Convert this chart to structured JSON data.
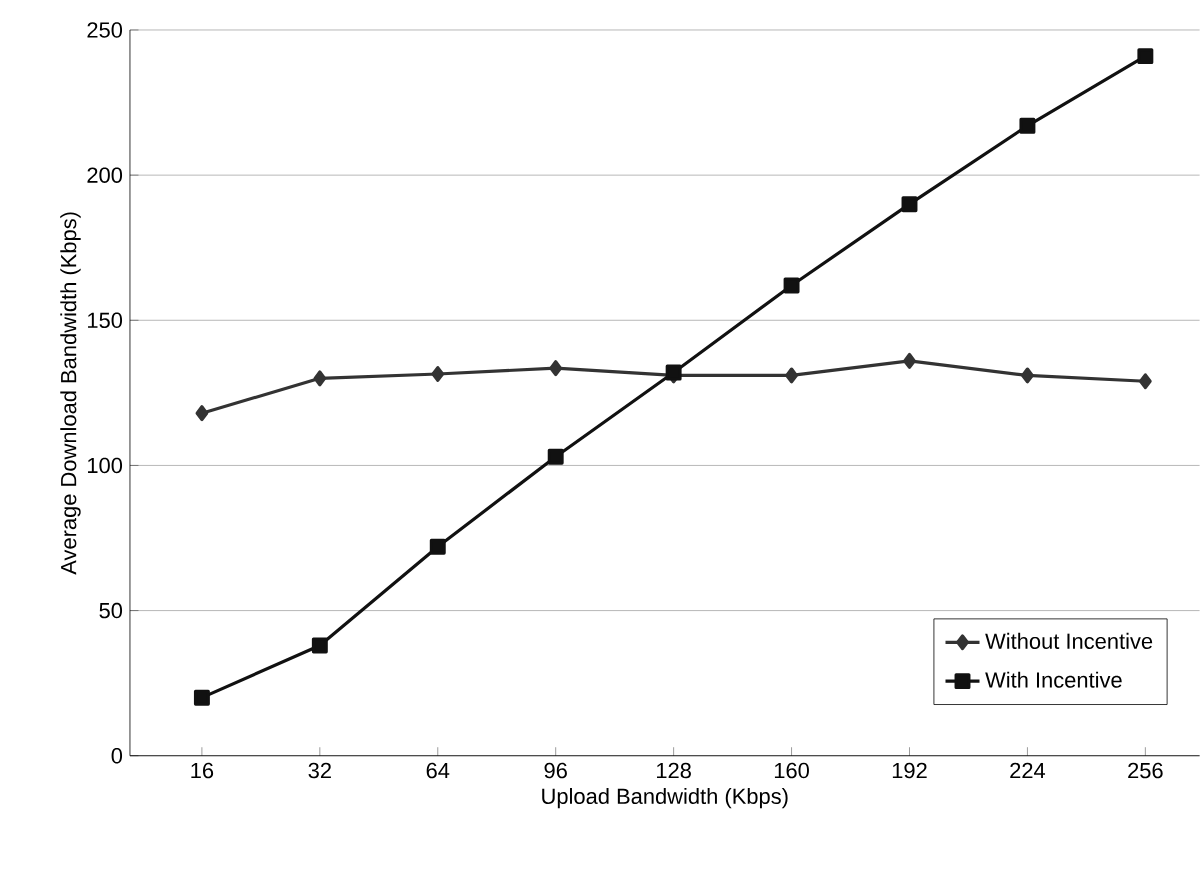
{
  "chart_data": {
    "type": "line",
    "xlabel": "Upload Bandwidth (Kbps)",
    "ylabel": "Average Download Bandwidth (Kbps)",
    "categories": [
      "16",
      "32",
      "64",
      "96",
      "128",
      "160",
      "192",
      "224",
      "256"
    ],
    "ylim": [
      0,
      250
    ],
    "yticks": [
      0,
      50,
      100,
      150,
      200,
      250
    ],
    "grid": "y",
    "legend": "bottom right",
    "line_style": "solid",
    "series": [
      {
        "name": "Without Incentive",
        "color": "#333333",
        "marker": "diamond",
        "values": [
          118,
          130,
          131.5,
          133.5,
          131,
          131,
          136,
          131,
          129
        ]
      },
      {
        "name": "With Incentive",
        "color": "#111111",
        "marker": "square",
        "values": [
          20,
          38,
          72,
          103,
          132,
          162,
          190,
          217,
          241
        ]
      }
    ]
  }
}
